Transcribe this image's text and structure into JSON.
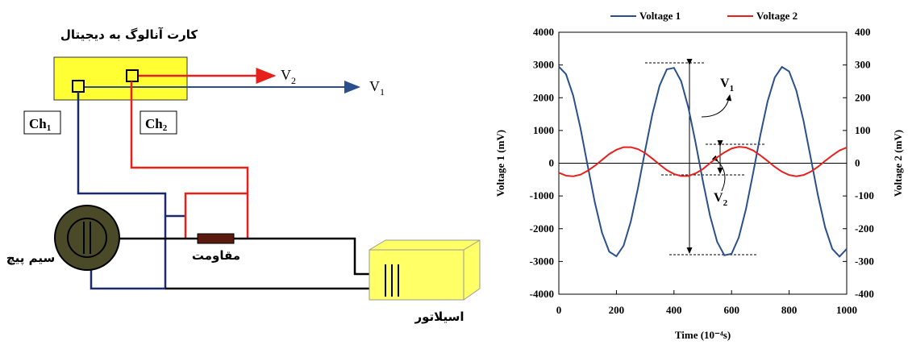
{
  "diagram": {
    "title": "کارت آنالوگ به دیجیتال",
    "ch1": {
      "text": "Ch",
      "sub": "1"
    },
    "ch2": {
      "text": "Ch",
      "sub": "2"
    },
    "out_v2": {
      "text": "V",
      "sub": "2"
    },
    "out_v1": {
      "text": "V",
      "sub": "1"
    },
    "resistor": "مقاومت",
    "coil": "سیم پیچ",
    "oscillator": "اسیلاتور"
  },
  "chart_data": {
    "type": "line",
    "xlabel": "Time (10⁻⁴s)",
    "ylabel": "Voltage 1 (mV)",
    "y2label": "Voltage 2 (mV)",
    "x": [
      0,
      25,
      50,
      75,
      100,
      125,
      150,
      175,
      200,
      225,
      250,
      275,
      300,
      325,
      350,
      375,
      400,
      425,
      450,
      475,
      500,
      525,
      550,
      575,
      600,
      625,
      650,
      675,
      700,
      725,
      750,
      775,
      800,
      825,
      850,
      875,
      900,
      925,
      950,
      975,
      1000
    ],
    "series": [
      {
        "name": "Voltage 1",
        "color": "#2b4f8c",
        "values": [
          2950,
          2718,
          2060,
          1079,
          -66,
          -1194,
          -2122,
          -2702,
          -2841,
          -2517,
          -1783,
          -756,
          398,
          1500,
          2370,
          2866,
          2912,
          2501,
          1697,
          630,
          -530,
          -1597,
          -2401,
          -2812,
          -2766,
          -2270,
          -1400,
          -298,
          856,
          1883,
          2617,
          2941,
          2802,
          2222,
          1294,
          166,
          -979,
          -1960,
          -2618,
          -2850,
          -2618
        ]
      },
      {
        "name": "Voltage 2",
        "color": "#e8201c",
        "axis": "y2",
        "values": [
          -29,
          -38,
          -40,
          -35,
          -23,
          -8,
          10,
          28,
          41,
          49,
          49,
          43,
          31,
          14,
          -4,
          -21,
          -33,
          -39,
          -39,
          -31,
          -18,
          0,
          18,
          33,
          45,
          50,
          48,
          39,
          24,
          7,
          -11,
          -26,
          -36,
          -40,
          -36,
          -26,
          -11,
          7,
          24,
          39,
          48
        ]
      }
    ],
    "xlim": [
      0,
      1000
    ],
    "xticks": [
      0,
      200,
      400,
      600,
      800,
      1000
    ],
    "ylim": [
      -4000,
      4000
    ],
    "yticks": [
      -4000,
      -3000,
      -2000,
      -1000,
      0,
      1000,
      2000,
      3000,
      4000
    ],
    "y2lim": [
      -400,
      400
    ],
    "y2ticks": [
      -400,
      -300,
      -200,
      -100,
      0,
      100,
      200,
      300,
      400
    ],
    "legend": "top",
    "annotations": [
      {
        "text": "V",
        "sub": "1"
      },
      {
        "text": "V",
        "sub": "2"
      }
    ]
  }
}
